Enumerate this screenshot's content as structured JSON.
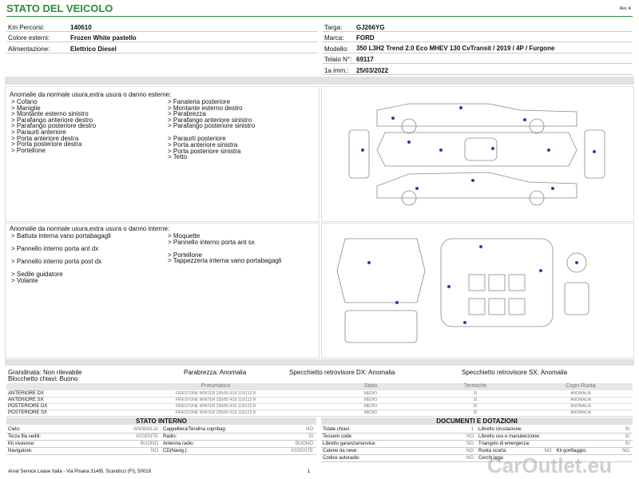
{
  "header": {
    "title": "STATO DEL VEICOLO",
    "rev": "Rev. A"
  },
  "info_left": [
    {
      "label": "Km Percorsi:",
      "value": "140610"
    },
    {
      "label": "Colore esterni:",
      "value": "Frozen White pastello"
    },
    {
      "label": "Alimentazione:",
      "value": "Elettrico Diesel"
    }
  ],
  "info_right": [
    {
      "label": "Targa:",
      "value": "GJ266YG"
    },
    {
      "label": "Marca:",
      "value": "FORD"
    },
    {
      "label": "Modello:",
      "value": "350 L3H2 Trend 2.0 Eco MHEV 130 CvTransit / 2019 / 4P / Furgone"
    },
    {
      "label": "Telaio N°:",
      "value": "69117"
    },
    {
      "label": "1a imm.:",
      "value": "25/03/2022"
    }
  ],
  "external": {
    "title": "Anomalie da normale usura,extra usura o danno esterne:",
    "col1": [
      "> Cofano",
      "> Maniglie",
      "> Montante esterno sinistro",
      "> Parafango anteriore destro",
      "> Parafango posteriore destro",
      "> Paraurti anteriore",
      "> Porta anteriore destra",
      "> Porta posteriore destra",
      "> Portellone"
    ],
    "col2": [
      "> Fanaleria posteriore",
      "> Montante esterno destro",
      "> Parabrezza",
      "> Parafango anteriore sinistro",
      "> Parafango posteriore sinistro",
      "> Paraurti posteriore",
      "> Porta anteriore sinistra",
      "> Porta posteriore sinistra",
      "> Tetto"
    ]
  },
  "internal": {
    "title": "Anomalie da normale usura,extra usura o danno interne:",
    "col1": [
      "> Battuta interna vano portabagagli",
      "> Pannello interno porta ant dx",
      "> Pannello interno porta post dx",
      "> Sedile guidatore",
      "> Volante"
    ],
    "col2": [
      "> Moquette",
      "> Pannello interno porta ant sx",
      "> Portellone",
      "> Tappezzeria interna vano portabagagli"
    ]
  },
  "summary": {
    "grandinata": "Grandinata: Non rilevabile",
    "blocchetto": "Blocchetto chiavi: Buono",
    "parabrezza": "Parabrezza: Anomalia",
    "specchio_dx": "Specchietto retrovisore DX: Anomalia",
    "specchio_sx": "Specchietto retrovisore SX: Anomalia"
  },
  "tires": {
    "headers": [
      "Pneumatico",
      "Stato",
      "Termiche",
      "Copri Ruota"
    ],
    "rows": [
      [
        "ANTERIORE DX",
        "FIRESTONE WINTER 235/65 R16 115/113 R",
        "MEDIO",
        "SI",
        "ANOMALIA"
      ],
      [
        "ANTERIORE SX",
        "FIRESTONE WINTER 235/65 R16 115/113 R",
        "MEDIO",
        "SI",
        "ANOMALIA"
      ],
      [
        "POSTERIORE DX",
        "FIRESTONE WINTER 235/65 R16 115/113 R",
        "MEDIO",
        "SI",
        "ANOMALIA"
      ],
      [
        "POSTERIORE SX",
        "FIRESTONE WINTER 235/65 R16 115/113 R",
        "MEDIO",
        "SI",
        "ANOMALIA"
      ]
    ]
  },
  "interior": {
    "title": "STATO INTERNO",
    "rows": [
      [
        [
          "Cielo:",
          "ANOMALIA"
        ],
        [
          "Cappelliera/Tendina copribag:",
          "NO"
        ]
      ],
      [
        [
          "Terza fila sedili:",
          "ASSENTE"
        ],
        [
          "Radio:",
          "SI"
        ]
      ],
      [
        [
          "Kit vivavoce:",
          "BUONO"
        ],
        [
          "Antenna radio:",
          "BUONO"
        ]
      ],
      [
        [
          "Navigatore:",
          "NO"
        ],
        [
          "CD(Navig.):",
          "ASSENTE"
        ]
      ]
    ]
  },
  "documents": {
    "title": "DOCUMENTI E DOTAZIONI",
    "rows": [
      [
        [
          "Totale chiavi:",
          "1"
        ],
        [
          "Libretto circolazione:",
          "SI"
        ]
      ],
      [
        [
          "Tessere code:",
          "NO"
        ],
        [
          "Libretto uso e manutenzione:",
          "SI"
        ]
      ],
      [
        [
          "Libretto garanzia/service:",
          "NO"
        ],
        [
          "Triangolo di emergenza:",
          "SI"
        ]
      ],
      [
        [
          "Catene da neve:",
          "NO"
        ],
        [
          "Ruota scorta:",
          "NO"
        ],
        [
          "Kit gonfiaggio:",
          "NO"
        ]
      ],
      [
        [
          "Codice autoradio:",
          "NO"
        ],
        [
          "Cerchi lega:"
        ]
      ]
    ]
  },
  "footer": {
    "address": "Arval Service Lease Italia - Via Pisana 314/B, Scandicci (FI), 50018",
    "page": "1",
    "watermark": "CarOutlet.eu"
  }
}
